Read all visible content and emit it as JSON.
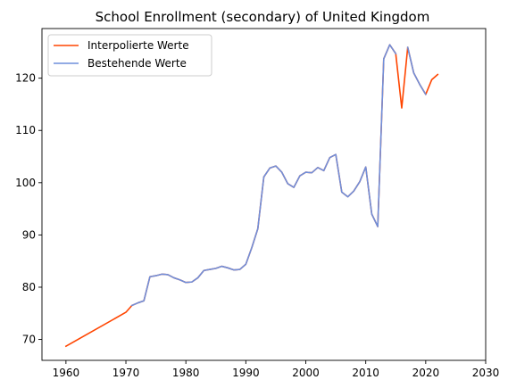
{
  "chart_data": {
    "type": "line",
    "title": "School Enrollment (secondary) of United Kingdom",
    "xlabel": "",
    "ylabel": "",
    "xlim": [
      1956,
      2030
    ],
    "ylim": [
      66,
      129.5
    ],
    "xticks": [
      1960,
      1970,
      1980,
      1990,
      2000,
      2010,
      2020,
      2030
    ],
    "yticks": [
      70,
      80,
      90,
      100,
      110,
      120
    ],
    "grid": false,
    "legend_position": "top-left",
    "series": [
      {
        "name": "Interpolierte Werte",
        "color": "#ff4500",
        "x": [
          1960,
          1970,
          1971,
          1972,
          1973,
          1974,
          1975,
          1976,
          1977,
          1978,
          1979,
          1980,
          1981,
          1982,
          1983,
          1984,
          1985,
          1986,
          1987,
          1988,
          1989,
          1990,
          1991,
          1992,
          1993,
          1994,
          1995,
          1996,
          1997,
          1998,
          1999,
          2000,
          2001,
          2002,
          2003,
          2004,
          2005,
          2006,
          2007,
          2008,
          2009,
          2010,
          2011,
          2012,
          2013,
          2014,
          2015,
          2016,
          2017,
          2018,
          2019,
          2020,
          2021,
          2022
        ],
        "y": [
          68.7,
          75.2,
          76.5,
          77.0,
          77.4,
          82.0,
          82.2,
          82.5,
          82.4,
          81.8,
          81.4,
          80.9,
          81.0,
          81.8,
          83.2,
          83.4,
          83.6,
          84.0,
          83.7,
          83.3,
          83.4,
          84.4,
          87.6,
          91.2,
          101.1,
          102.8,
          103.2,
          102.0,
          99.8,
          99.1,
          101.3,
          102.0,
          101.9,
          102.9,
          102.3,
          104.8,
          105.4,
          98.2,
          97.3,
          98.4,
          100.2,
          103.0,
          94.0,
          91.6,
          123.7,
          126.4,
          124.7,
          114.3,
          125.9,
          121.0,
          118.8,
          116.9,
          119.7,
          120.7
        ]
      },
      {
        "name": "Bestehende Werte",
        "color": "#6f8fdb",
        "x": [
          1971,
          1972,
          1973,
          1974,
          1975,
          1976,
          1977,
          1978,
          1979,
          1980,
          1981,
          1982,
          1983,
          1984,
          1985,
          1986,
          1987,
          1988,
          1989,
          1990,
          1991,
          1992,
          1993,
          1994,
          1995,
          1996,
          1997,
          1998,
          1999,
          2000,
          2001,
          2002,
          2003,
          2004,
          2005,
          2006,
          2007,
          2008,
          2009,
          2010,
          2011,
          2012,
          2013,
          2014,
          2015
        ],
        "y": [
          76.5,
          77.0,
          77.4,
          82.0,
          82.2,
          82.5,
          82.4,
          81.8,
          81.4,
          80.9,
          81.0,
          81.8,
          83.2,
          83.4,
          83.6,
          84.0,
          83.7,
          83.3,
          83.4,
          84.4,
          87.6,
          91.2,
          101.1,
          102.8,
          103.2,
          102.0,
          99.8,
          99.1,
          101.3,
          102.0,
          101.9,
          102.9,
          102.3,
          104.8,
          105.4,
          98.2,
          97.3,
          98.4,
          100.2,
          103.0,
          94.0,
          91.6,
          123.7,
          126.4,
          124.7
        ]
      },
      {
        "name": "",
        "color": "#6f8fdb",
        "x": [
          2017,
          2018,
          2019,
          2020
        ],
        "y": [
          125.9,
          121.0,
          118.8,
          116.9
        ]
      }
    ]
  }
}
